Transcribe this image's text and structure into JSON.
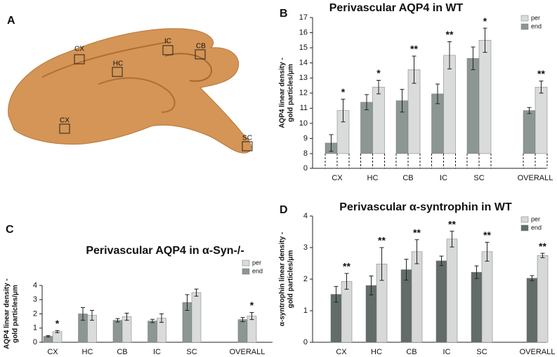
{
  "panel_labels": [
    "A",
    "B",
    "C",
    "D"
  ],
  "image_labels": [
    "CX",
    "HC",
    "IC",
    "CB",
    "CX",
    "SC"
  ],
  "chart_data": [
    {
      "type": "bar",
      "title": "Perivascular AQP4 in WT",
      "ylabel": [
        "AQP4 linear density -",
        "gold particles/μm"
      ],
      "categories": [
        "CX",
        "HC",
        "CB",
        "IC",
        "SC",
        "OVERALL"
      ],
      "series": [
        {
          "name": "end",
          "color": "#8c9692",
          "values": [
            8.7,
            11.4,
            11.5,
            11.95,
            14.3,
            10.85
          ],
          "errors": [
            0.55,
            0.5,
            0.75,
            0.65,
            0.75,
            0.2
          ]
        },
        {
          "name": "per",
          "color": "#d9dcdb",
          "values": [
            10.85,
            12.4,
            13.55,
            14.5,
            15.5,
            12.4
          ],
          "errors": [
            0.75,
            0.45,
            0.9,
            0.9,
            0.8,
            0.4
          ]
        }
      ],
      "significance": [
        "*",
        "*",
        "**",
        "**",
        "*",
        "**"
      ],
      "ylim": [
        0,
        17
      ],
      "axis_break": 8,
      "yticks": [
        0,
        8,
        9,
        10,
        11,
        12,
        13,
        14,
        15,
        16,
        17
      ],
      "legend": "upper right"
    },
    {
      "type": "bar",
      "title": "Perivascular AQP4 in α-Syn-/-",
      "ylabel": [
        "AQP4 linear density -",
        "gold particles/μm"
      ],
      "categories": [
        "CX",
        "HC",
        "CB",
        "IC",
        "SC",
        "OVERALL"
      ],
      "series": [
        {
          "name": "end",
          "color": "#8c9692",
          "values": [
            0.42,
            2.0,
            1.55,
            1.5,
            2.8,
            1.6
          ],
          "errors": [
            0.05,
            0.45,
            0.12,
            0.12,
            0.55,
            0.15
          ]
        },
        {
          "name": "per",
          "color": "#d9dcdb",
          "values": [
            0.75,
            1.9,
            1.8,
            1.7,
            3.5,
            1.85
          ],
          "errors": [
            0.08,
            0.35,
            0.25,
            0.3,
            0.25,
            0.25
          ]
        }
      ],
      "significance": [
        "*",
        null,
        null,
        null,
        null,
        "*"
      ],
      "ylim": [
        0,
        4
      ],
      "yticks": [
        0,
        1,
        2,
        3,
        4
      ],
      "legend": "upper right"
    },
    {
      "type": "bar",
      "title": "Perivascular α-syntrophin in WT",
      "ylabel": [
        "α-syntrophin linear density -",
        "gold particles/μm"
      ],
      "categories": [
        "CX",
        "HC",
        "CB",
        "IC",
        "SC",
        "OVERALL"
      ],
      "series": [
        {
          "name": "end",
          "color": "#626c68",
          "values": [
            1.52,
            1.8,
            2.3,
            2.58,
            2.22,
            2.03
          ],
          "errors": [
            0.25,
            0.3,
            0.33,
            0.15,
            0.2,
            0.08
          ]
        },
        {
          "name": "per",
          "color": "#d6d9d8",
          "values": [
            1.93,
            2.48,
            2.87,
            3.27,
            2.87,
            2.75
          ],
          "errors": [
            0.25,
            0.52,
            0.38,
            0.25,
            0.3,
            0.07
          ]
        }
      ],
      "significance": [
        "**",
        "**",
        "**",
        "**",
        "**",
        "**"
      ],
      "ylim": [
        0,
        4
      ],
      "yticks": [
        0,
        1,
        2,
        3,
        4
      ],
      "legend": "upper right"
    }
  ]
}
